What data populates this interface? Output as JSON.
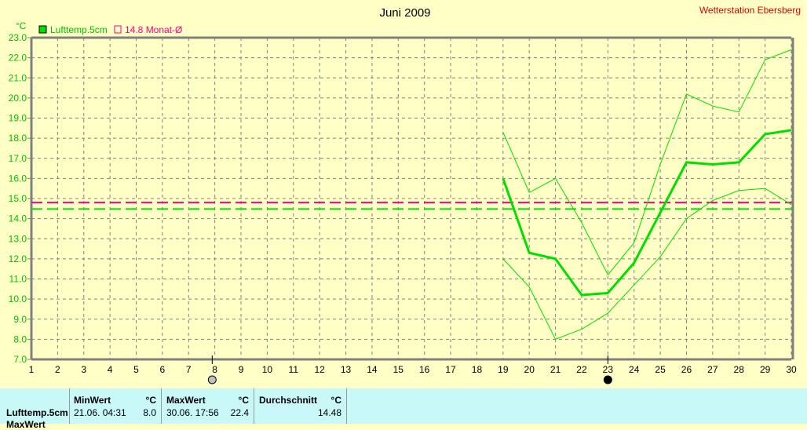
{
  "chart_data": {
    "type": "line",
    "title": "Juni 2009",
    "station": "Wetterstation Ebersberg",
    "ylabel": "°C",
    "ylim": [
      7.0,
      23.0
    ],
    "xlim": [
      1,
      30
    ],
    "yticks": [
      "7.0",
      "8.0",
      "9.0",
      "10.0",
      "11.0",
      "12.0",
      "13.0",
      "14.0",
      "15.0",
      "16.0",
      "17.0",
      "18.0",
      "19.0",
      "20.0",
      "21.0",
      "22.0",
      "23.0"
    ],
    "xticks": [
      "1",
      "2",
      "3",
      "4",
      "5",
      "6",
      "7",
      "8",
      "9",
      "10",
      "11",
      "12",
      "13",
      "14",
      "15",
      "16",
      "17",
      "18",
      "19",
      "20",
      "21",
      "22",
      "23",
      "24",
      "25",
      "26",
      "27",
      "28",
      "29",
      "30"
    ],
    "grid": true,
    "legend": [
      {
        "label": "Lufttemp.5cm",
        "color": "#00e000"
      },
      {
        "label": "14.8 Monat-Ø",
        "color": "#ff0080"
      }
    ],
    "x": [
      19,
      20,
      21,
      22,
      23,
      24,
      25,
      26,
      27,
      28,
      29,
      30
    ],
    "series": [
      {
        "name": "Lufttemp.5cm",
        "role": "mean",
        "values": [
          16.0,
          12.3,
          12.0,
          10.2,
          10.3,
          11.8,
          14.3,
          16.8,
          16.7,
          16.8,
          18.2,
          18.4
        ]
      },
      {
        "role": "max",
        "values": [
          18.3,
          15.3,
          16.0,
          13.8,
          11.2,
          12.8,
          16.7,
          20.2,
          19.6,
          19.3,
          21.9,
          22.4
        ]
      },
      {
        "role": "min",
        "values": [
          12.0,
          10.6,
          8.0,
          8.5,
          9.3,
          10.7,
          12.1,
          14.0,
          14.9,
          15.4,
          15.5,
          14.7
        ]
      }
    ],
    "reference_lines": [
      {
        "label": "Durchschnitt",
        "value": 14.48,
        "color": "#00e000"
      },
      {
        "label": "14.8 Monat-Ø",
        "value": 14.8,
        "color": "#ff0080"
      }
    ],
    "markers": [
      {
        "x": 7.9,
        "icon": "moon-first-quarter-icon"
      },
      {
        "x": 23,
        "icon": "new-moon-icon"
      }
    ]
  },
  "table": {
    "row_label": "Lufttemp.5cm",
    "row2_label": "MaxWert",
    "min": {
      "header": "MinWert",
      "unit": "°C",
      "date": "21.06.  04:31",
      "value": "8.0"
    },
    "max": {
      "header": "MaxWert",
      "unit": "°C",
      "date": "30.06.  17:56",
      "value": "22.4"
    },
    "avg": {
      "header": "Durchschnitt",
      "unit": "°C",
      "value": "14.48"
    }
  }
}
